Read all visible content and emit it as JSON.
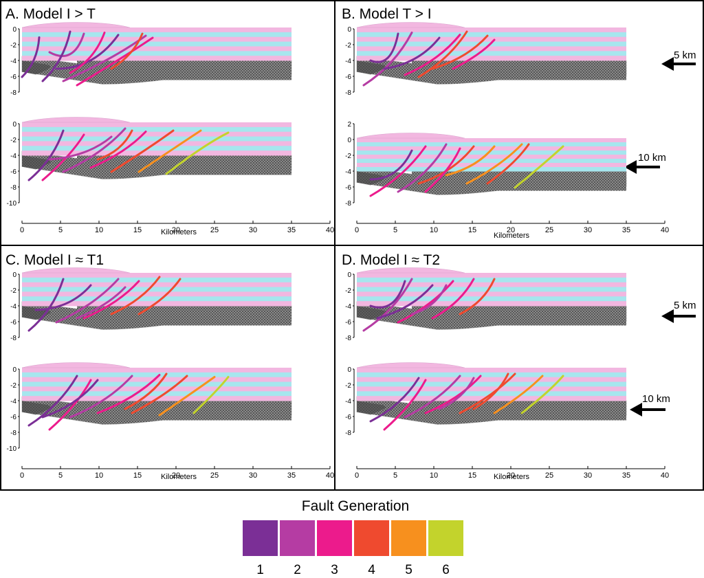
{
  "panels": [
    {
      "title": "A. Model I > T",
      "arrows": [],
      "sections": [
        {
          "ylabels": [
            "0",
            "-2",
            "-4",
            "-6",
            "-8"
          ],
          "nlayers": 7
        },
        {
          "ylabels": [
            "0",
            "-2",
            "-4",
            "-6",
            "-8",
            "-10"
          ],
          "nlayers": 7
        }
      ],
      "xticks": [
        "0",
        "5",
        "10",
        "15",
        "20",
        "25",
        "30",
        "35",
        "40"
      ],
      "xlabel": "Kilometers"
    },
    {
      "title": "B. Model T > I",
      "arrows": [
        "5 km",
        "10 km"
      ],
      "sections": [
        {
          "ylabels": [
            "0",
            "-2",
            "-4",
            "-6",
            "-8"
          ],
          "nlayers": 7
        },
        {
          "ylabels": [
            "2",
            "0",
            "-2",
            "-4",
            "-6",
            "-8"
          ],
          "nlayers": 8
        }
      ],
      "xticks": [
        "0",
        "5",
        "10",
        "15",
        "20",
        "25",
        "30",
        "35",
        "40"
      ],
      "xlabel": "Kilometers"
    },
    {
      "title": "C. Model I ≈ T1",
      "arrows": [],
      "sections": [
        {
          "ylabels": [
            "0",
            "-2",
            "-4",
            "-6",
            "-8"
          ],
          "nlayers": 7
        },
        {
          "ylabels": [
            "0",
            "-2",
            "-4",
            "-6",
            "-8",
            "-10"
          ],
          "nlayers": 7
        }
      ],
      "xticks": [
        "0",
        "5",
        "10",
        "15",
        "20",
        "25",
        "30",
        "35",
        "40"
      ],
      "xlabel": "Kilometers"
    },
    {
      "title": "D. Model I ≈ T2",
      "arrows": [
        "5 km",
        "10 km"
      ],
      "sections": [
        {
          "ylabels": [
            "0",
            "-2",
            "-4",
            "-6",
            "-8"
          ],
          "nlayers": 7
        },
        {
          "ylabels": [
            "0",
            "-2",
            "-4",
            "-6",
            "-8"
          ],
          "nlayers": 7
        }
      ],
      "xticks": [
        "0",
        "5",
        "10",
        "15",
        "20",
        "25",
        "30",
        "35",
        "40"
      ],
      "xlabel": "Kilometers"
    }
  ],
  "legend": {
    "title": "Fault Generation",
    "items": [
      {
        "label": "1",
        "color": "#7b2f96"
      },
      {
        "label": "2",
        "color": "#b53ca3"
      },
      {
        "label": "3",
        "color": "#ec1b8c"
      },
      {
        "label": "4",
        "color": "#ef4a2f"
      },
      {
        "label": "5",
        "color": "#f7901e"
      },
      {
        "label": "6",
        "color": "#c3d32c"
      }
    ]
  },
  "colors": {
    "layer_pink": "#f2b7e0",
    "layer_cyan": "#a6e6ee",
    "basement": "#5e5e5e",
    "frame": "#000000"
  }
}
